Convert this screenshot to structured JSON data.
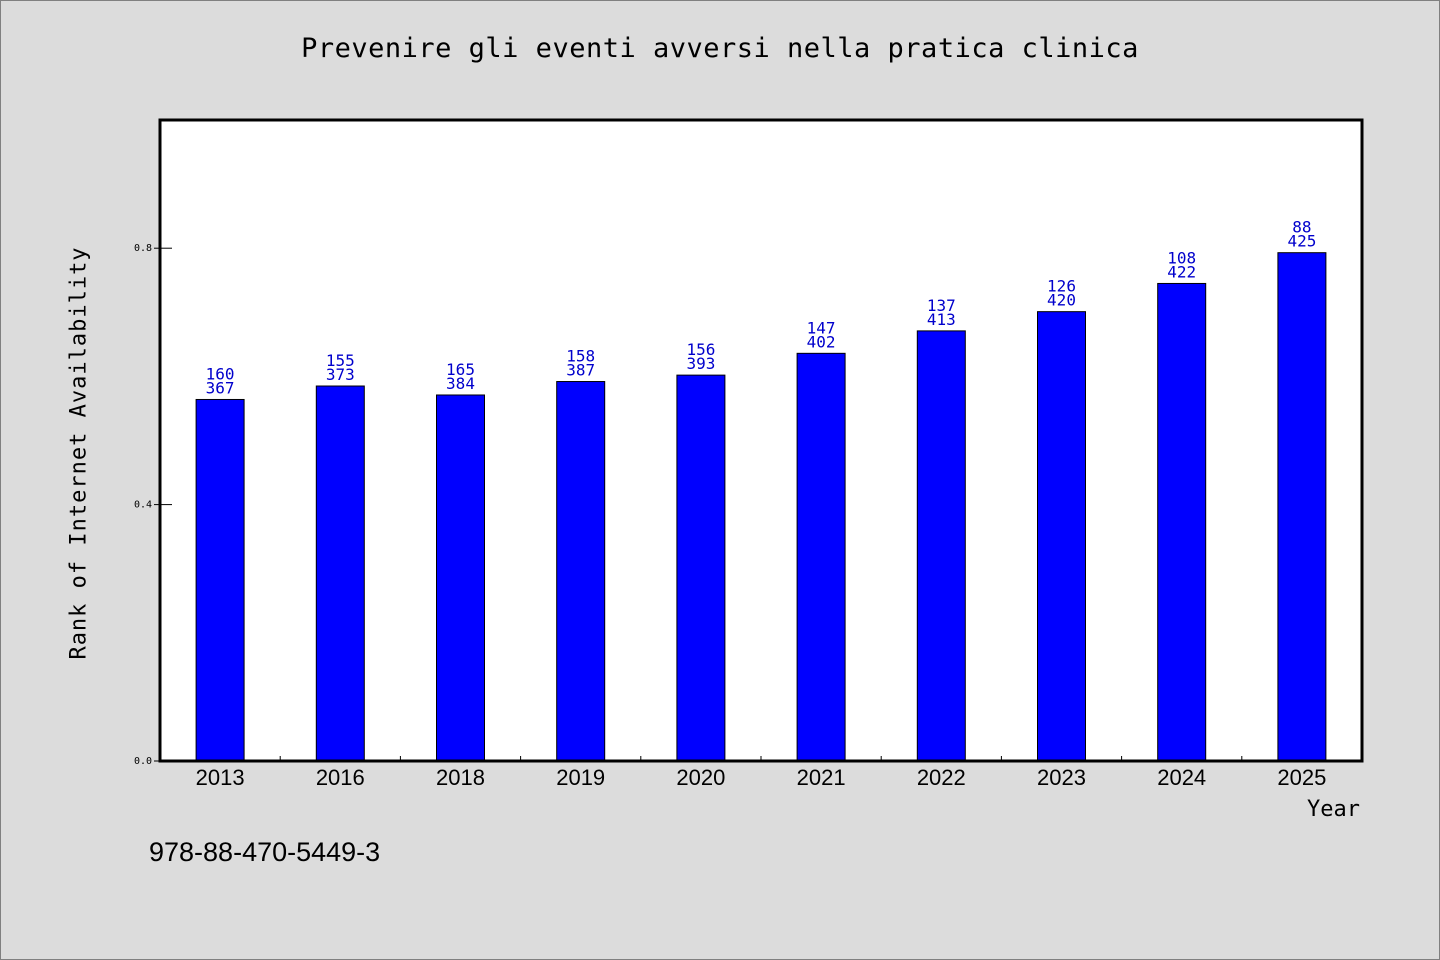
{
  "chart_data": {
    "type": "bar",
    "title": "Prevenire gli eventi avversi nella pratica clinica",
    "xlabel": "Year",
    "ylabel": "Rank of Internet Availability",
    "categories": [
      "2013",
      "2016",
      "2018",
      "2019",
      "2020",
      "2021",
      "2022",
      "2023",
      "2024",
      "2025"
    ],
    "values": [
      0.564,
      0.585,
      0.571,
      0.592,
      0.602,
      0.636,
      0.671,
      0.701,
      0.745,
      0.793
    ],
    "label_top": [
      "160",
      "155",
      "165",
      "158",
      "156",
      "147",
      "137",
      "126",
      "108",
      "88"
    ],
    "label_bottom": [
      "367",
      "373",
      "384",
      "387",
      "393",
      "402",
      "413",
      "420",
      "422",
      "425"
    ],
    "ylim": [
      0,
      1.0
    ],
    "yticks": [
      0.0,
      0.4,
      0.8
    ],
    "ytick_labels": [
      "0.0",
      "0.4",
      "0.8"
    ],
    "grid": false,
    "bar_color": "#0000ff",
    "label_color": "#0000cc"
  },
  "footnote": "978-88-470-5449-3"
}
